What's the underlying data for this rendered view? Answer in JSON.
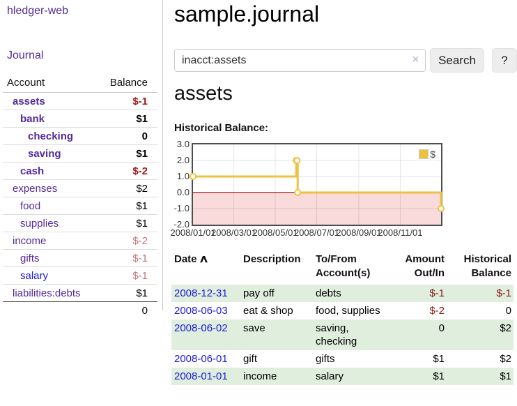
{
  "colors": {
    "link_purple": "#552a9b",
    "link_blue": "#1a1ad9",
    "negative_strong": "#9e1b1b",
    "negative_soft": "#c27777",
    "negative_table": "#8b1a1a",
    "row_stripe_green": "#dfeedd",
    "series_gold": "#edc240",
    "negative_region_pink": "#f9dbdb",
    "zero_line_red": "#8b1c1c"
  },
  "sidebar": {
    "app_title": "hledger-web",
    "nav": {
      "journal_label": "Journal"
    },
    "table": {
      "account_header": "Account",
      "balance_header": "Balance",
      "accounts": [
        {
          "name": "assets",
          "balance": "$-1",
          "indent": 1,
          "bold": true,
          "balance_style": "neg-strong"
        },
        {
          "name": "bank",
          "balance": "$1",
          "indent": 2,
          "bold": true,
          "balance_style": "pos-strong"
        },
        {
          "name": "checking",
          "balance": "0",
          "indent": 3,
          "bold": true,
          "balance_style": "pos-strong"
        },
        {
          "name": "saving",
          "balance": "$1",
          "indent": 3,
          "bold": true,
          "balance_style": "pos-strong"
        },
        {
          "name": "cash",
          "balance": "$-2",
          "indent": 2,
          "bold": true,
          "balance_style": "neg-strong"
        },
        {
          "name": "expenses",
          "balance": "$2",
          "indent": 1,
          "bold": false,
          "balance_style": "pos"
        },
        {
          "name": "food",
          "balance": "$1",
          "indent": 2,
          "bold": false,
          "balance_style": "pos"
        },
        {
          "name": "supplies",
          "balance": "$1",
          "indent": 2,
          "bold": false,
          "balance_style": "pos"
        },
        {
          "name": "income",
          "balance": "$-2",
          "indent": 1,
          "bold": false,
          "balance_style": "neg-soft"
        },
        {
          "name": "gifts",
          "balance": "$-1",
          "indent": 2,
          "bold": false,
          "balance_style": "neg-soft"
        },
        {
          "name": "salary",
          "balance": "$-1",
          "indent": 2,
          "bold": false,
          "balance_style": "neg-soft",
          "link_color": "blue"
        },
        {
          "name": "liabilities:debts",
          "balance": "$1",
          "indent": 1,
          "bold": false,
          "balance_style": "pos"
        }
      ],
      "total": "0"
    }
  },
  "main": {
    "page_title": "sample.journal",
    "search": {
      "value": "inacct:assets",
      "clear_icon": "×",
      "button_label": "Search",
      "help_label": "?"
    },
    "account_heading": "assets",
    "chart_label": "Historical Balance:"
  },
  "chart_data": {
    "type": "line",
    "step": true,
    "title": "Historical Balance:",
    "x": [
      "2008-01-01",
      "2008-06-01",
      "2008-06-02",
      "2008-06-03",
      "2008-12-31"
    ],
    "series": [
      {
        "name": "$",
        "color": "#edc240",
        "values": [
          1,
          2,
          2,
          0,
          -1
        ]
      }
    ],
    "xlim": [
      "2008-01-01",
      "2008-12-31"
    ],
    "ylim": [
      -2,
      3
    ],
    "ytick_labels": [
      "3.0",
      "2.0",
      "1.0",
      "0.0",
      "-1.0",
      "-2.0"
    ],
    "xtick_dates": [
      "2008-01-01",
      "2008-03-01",
      "2008-05-01",
      "2008-07-01",
      "2008-09-01",
      "2008-11-01"
    ],
    "xtick_labels": [
      "2008/01/01",
      "2008/03/01",
      "2008/05/01",
      "2008/07/01",
      "2008/09/01",
      "2008/11/01"
    ],
    "grid": true,
    "legend_position": "top-right",
    "legend_label": "$",
    "negative_region_fill": "#f9dbdb",
    "zero_line_color": "#8b1c1c"
  },
  "transactions": {
    "headers": {
      "date": "Date",
      "sort_indicator": "∧",
      "description": "Description",
      "accounts": "To/From Account(s)",
      "amount": "Amount Out/In",
      "balance": "Historical Balance"
    },
    "rows": [
      {
        "date": "2008-12-31",
        "description": "pay off",
        "accounts": "debts",
        "amount": "$-1",
        "amount_negative": true,
        "balance": "$-1",
        "balance_negative": true
      },
      {
        "date": "2008-06-03",
        "description": "eat & shop",
        "accounts": "food, supplies",
        "amount": "$-2",
        "amount_negative": true,
        "balance": "0",
        "balance_negative": false
      },
      {
        "date": "2008-06-02",
        "description": "save",
        "accounts": "saving,\nchecking",
        "amount": "0",
        "amount_negative": false,
        "balance": "$2",
        "balance_negative": false
      },
      {
        "date": "2008-06-01",
        "description": "gift",
        "accounts": "gifts",
        "amount": "$1",
        "amount_negative": false,
        "balance": "$2",
        "balance_negative": false
      },
      {
        "date": "2008-01-01",
        "description": "income",
        "accounts": "salary",
        "amount": "$1",
        "amount_negative": false,
        "balance": "$1",
        "balance_negative": false
      }
    ]
  }
}
